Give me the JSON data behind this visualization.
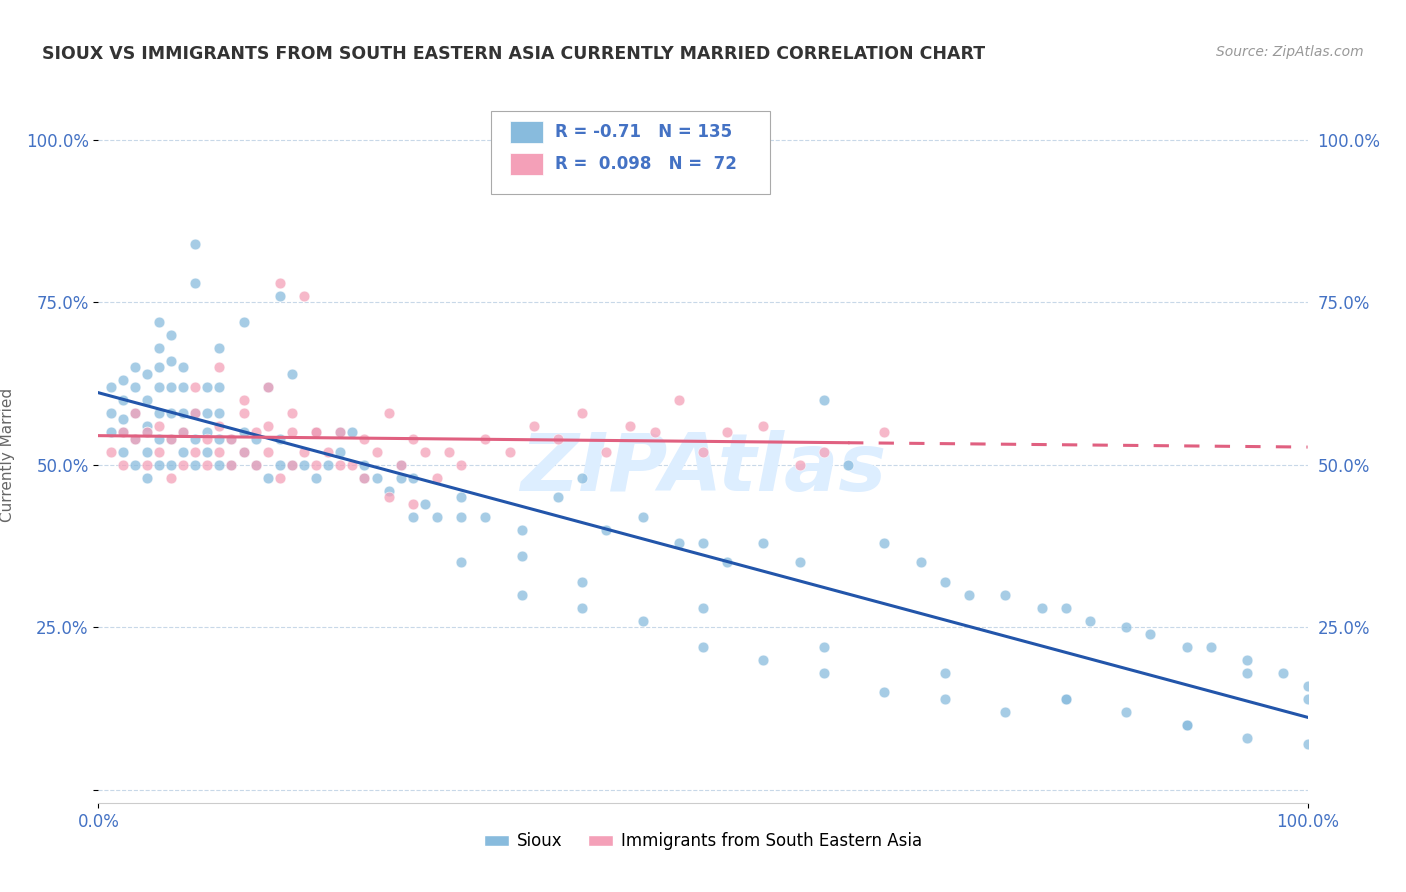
{
  "title": "SIOUX VS IMMIGRANTS FROM SOUTH EASTERN ASIA CURRENTLY MARRIED CORRELATION CHART",
  "source_text": "Source: ZipAtlas.com",
  "ylabel": "Currently Married",
  "x_range": [
    0.0,
    1.0
  ],
  "y_range": [
    -0.02,
    1.05
  ],
  "legend_label_1": "Sioux",
  "legend_label_2": "Immigrants from South Eastern Asia",
  "R1": -0.71,
  "N1": 135,
  "R2": 0.098,
  "N2": 72,
  "color_blue": "#88bbdd",
  "color_pink": "#f4a0b8",
  "line_color_blue": "#2255aa",
  "line_color_pink": "#e06080",
  "watermark_text": "ZIPAtlas",
  "watermark_color": "#ddeeff",
  "background_color": "#ffffff",
  "grid_color": "#c8d8e8",
  "title_color": "#333333",
  "axis_label_color": "#4472c4",
  "blue_scatter_x": [
    0.01,
    0.01,
    0.01,
    0.02,
    0.02,
    0.02,
    0.02,
    0.02,
    0.03,
    0.03,
    0.03,
    0.03,
    0.03,
    0.04,
    0.04,
    0.04,
    0.04,
    0.04,
    0.04,
    0.05,
    0.05,
    0.05,
    0.05,
    0.05,
    0.05,
    0.06,
    0.06,
    0.06,
    0.06,
    0.06,
    0.06,
    0.07,
    0.07,
    0.07,
    0.07,
    0.07,
    0.08,
    0.08,
    0.08,
    0.08,
    0.09,
    0.09,
    0.09,
    0.09,
    0.1,
    0.1,
    0.1,
    0.1,
    0.11,
    0.11,
    0.12,
    0.12,
    0.13,
    0.13,
    0.14,
    0.15,
    0.15,
    0.16,
    0.17,
    0.18,
    0.19,
    0.2,
    0.21,
    0.22,
    0.23,
    0.24,
    0.25,
    0.26,
    0.27,
    0.28,
    0.3,
    0.32,
    0.35,
    0.38,
    0.4,
    0.42,
    0.45,
    0.48,
    0.5,
    0.52,
    0.55,
    0.58,
    0.6,
    0.62,
    0.65,
    0.68,
    0.7,
    0.72,
    0.75,
    0.78,
    0.8,
    0.82,
    0.85,
    0.87,
    0.9,
    0.92,
    0.95,
    0.95,
    0.98,
    1.0,
    0.1,
    0.14,
    0.18,
    0.22,
    0.26,
    0.3,
    0.35,
    0.4,
    0.45,
    0.5,
    0.55,
    0.6,
    0.65,
    0.7,
    0.75,
    0.8,
    0.85,
    0.9,
    0.95,
    1.0,
    0.05,
    0.08,
    0.12,
    0.16,
    0.2,
    0.25,
    0.3,
    0.35,
    0.4,
    0.5,
    0.6,
    0.7,
    0.8,
    0.9,
    1.0,
    0.15
  ],
  "blue_scatter_y": [
    0.55,
    0.58,
    0.62,
    0.52,
    0.55,
    0.6,
    0.63,
    0.57,
    0.5,
    0.54,
    0.58,
    0.62,
    0.65,
    0.48,
    0.52,
    0.56,
    0.6,
    0.64,
    0.55,
    0.5,
    0.54,
    0.58,
    0.62,
    0.65,
    0.68,
    0.5,
    0.54,
    0.58,
    0.62,
    0.66,
    0.7,
    0.52,
    0.55,
    0.58,
    0.62,
    0.65,
    0.5,
    0.54,
    0.58,
    0.84,
    0.52,
    0.55,
    0.58,
    0.62,
    0.5,
    0.54,
    0.58,
    0.62,
    0.5,
    0.54,
    0.52,
    0.55,
    0.5,
    0.54,
    0.48,
    0.5,
    0.54,
    0.5,
    0.5,
    0.48,
    0.5,
    0.52,
    0.55,
    0.5,
    0.48,
    0.46,
    0.5,
    0.48,
    0.44,
    0.42,
    0.45,
    0.42,
    0.4,
    0.45,
    0.48,
    0.4,
    0.42,
    0.38,
    0.38,
    0.35,
    0.38,
    0.35,
    0.6,
    0.5,
    0.38,
    0.35,
    0.32,
    0.3,
    0.3,
    0.28,
    0.28,
    0.26,
    0.25,
    0.24,
    0.22,
    0.22,
    0.2,
    0.18,
    0.18,
    0.16,
    0.68,
    0.62,
    0.55,
    0.48,
    0.42,
    0.35,
    0.3,
    0.28,
    0.26,
    0.22,
    0.2,
    0.18,
    0.15,
    0.14,
    0.12,
    0.14,
    0.12,
    0.1,
    0.08,
    0.07,
    0.72,
    0.78,
    0.72,
    0.64,
    0.55,
    0.48,
    0.42,
    0.36,
    0.32,
    0.28,
    0.22,
    0.18,
    0.14,
    0.1,
    0.14,
    0.76
  ],
  "pink_scatter_x": [
    0.01,
    0.02,
    0.02,
    0.03,
    0.03,
    0.04,
    0.04,
    0.05,
    0.05,
    0.06,
    0.06,
    0.07,
    0.07,
    0.08,
    0.08,
    0.09,
    0.09,
    0.1,
    0.1,
    0.11,
    0.11,
    0.12,
    0.12,
    0.13,
    0.13,
    0.14,
    0.14,
    0.15,
    0.15,
    0.16,
    0.16,
    0.17,
    0.17,
    0.18,
    0.18,
    0.19,
    0.2,
    0.21,
    0.22,
    0.23,
    0.24,
    0.25,
    0.26,
    0.27,
    0.28,
    0.29,
    0.3,
    0.32,
    0.34,
    0.36,
    0.38,
    0.4,
    0.42,
    0.44,
    0.46,
    0.48,
    0.5,
    0.52,
    0.55,
    0.58,
    0.6,
    0.65,
    0.08,
    0.1,
    0.12,
    0.14,
    0.16,
    0.18,
    0.2,
    0.22,
    0.24,
    0.26
  ],
  "pink_scatter_y": [
    0.52,
    0.55,
    0.5,
    0.54,
    0.58,
    0.5,
    0.55,
    0.52,
    0.56,
    0.48,
    0.54,
    0.5,
    0.55,
    0.52,
    0.58,
    0.5,
    0.54,
    0.52,
    0.56,
    0.5,
    0.54,
    0.52,
    0.58,
    0.5,
    0.55,
    0.52,
    0.56,
    0.48,
    0.78,
    0.5,
    0.55,
    0.76,
    0.52,
    0.5,
    0.55,
    0.52,
    0.55,
    0.5,
    0.54,
    0.52,
    0.58,
    0.5,
    0.54,
    0.52,
    0.48,
    0.52,
    0.5,
    0.54,
    0.52,
    0.56,
    0.54,
    0.58,
    0.52,
    0.56,
    0.55,
    0.6,
    0.52,
    0.55,
    0.56,
    0.5,
    0.52,
    0.55,
    0.62,
    0.65,
    0.6,
    0.62,
    0.58,
    0.55,
    0.5,
    0.48,
    0.45,
    0.44
  ]
}
